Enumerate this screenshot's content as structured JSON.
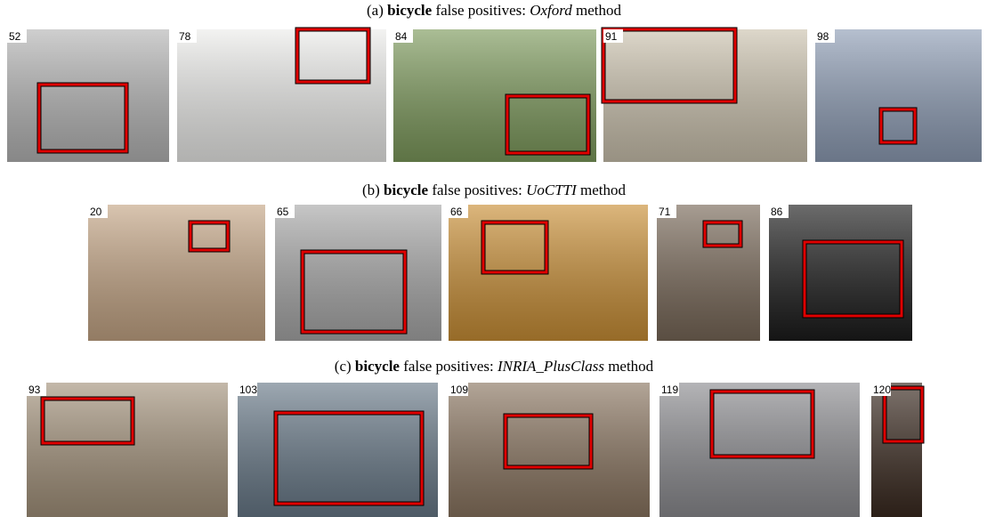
{
  "rows": [
    {
      "caption": {
        "prefix": "(a)",
        "class": "bicycle",
        "middle": "false positives:",
        "method": "Oxford",
        "suffix": "method"
      },
      "images": [
        {
          "rank": 52
        },
        {
          "rank": 78
        },
        {
          "rank": 84
        },
        {
          "rank": 91
        },
        {
          "rank": 98
        }
      ]
    },
    {
      "caption": {
        "prefix": "(b)",
        "class": "bicycle",
        "middle": "false positives:",
        "method": "UoCTTI",
        "suffix": "method"
      },
      "images": [
        {
          "rank": 20
        },
        {
          "rank": 65
        },
        {
          "rank": 66
        },
        {
          "rank": 71
        },
        {
          "rank": 86
        }
      ]
    },
    {
      "caption": {
        "prefix": "(c)",
        "class": "bicycle",
        "middle": "false positives:",
        "method": "INRIA_PlusClass",
        "suffix": "method"
      },
      "images": [
        {
          "rank": 93
        },
        {
          "rank": 103
        },
        {
          "rank": 109
        },
        {
          "rank": 119
        },
        {
          "rank": 120
        }
      ]
    }
  ]
}
